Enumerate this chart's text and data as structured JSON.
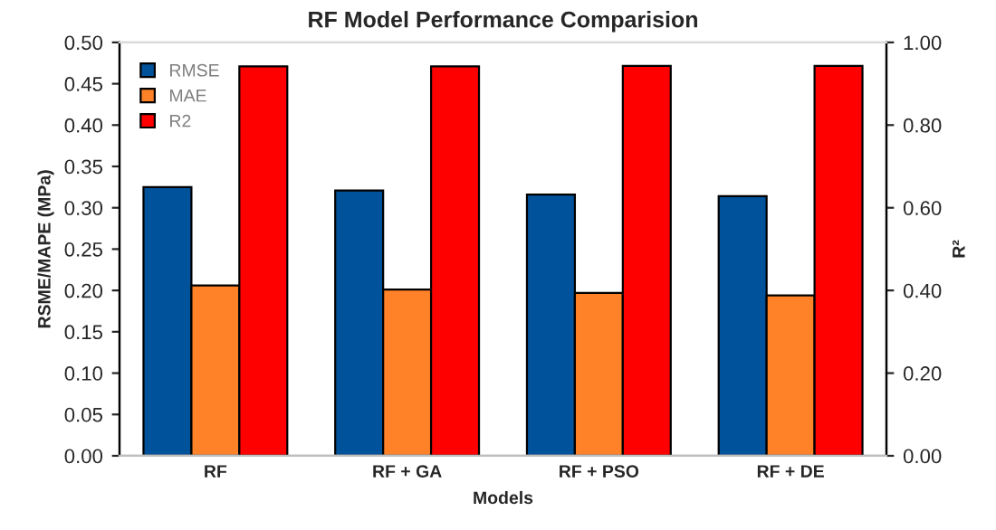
{
  "chart_data": {
    "type": "bar",
    "title": "RF Model Performance Comparision",
    "xlabel": "Models",
    "ylabel": "RSME/MAPE (MPa)",
    "y2label": "R²",
    "categories": [
      "RF",
      "RF + GA",
      "RF + PSO",
      "RF + DE"
    ],
    "series": [
      {
        "name": "RMSE",
        "color": "#00529b",
        "values": [
          0.325,
          0.321,
          0.316,
          0.314
        ]
      },
      {
        "name": "MAE",
        "color": "#ff8229",
        "values": [
          0.206,
          0.201,
          0.197,
          0.194
        ]
      },
      {
        "name": "R2",
        "color": "#ff0000",
        "values": [
          0.942,
          0.942,
          0.943,
          0.943
        ],
        "axis": "y2"
      }
    ],
    "ylim": [
      0,
      0.5
    ],
    "yticks": [
      {
        "value": 0,
        "label": "0.00"
      },
      {
        "value": 0.05,
        "label": "0.05"
      },
      {
        "value": 0.1,
        "label": "0.10"
      },
      {
        "value": 0.15,
        "label": "0.15"
      },
      {
        "value": 0.2,
        "label": "0.20"
      },
      {
        "value": 0.25,
        "label": "0.25"
      },
      {
        "value": 0.3,
        "label": "0.30"
      },
      {
        "value": 0.35,
        "label": "0.35"
      },
      {
        "value": 0.4,
        "label": "0.40"
      },
      {
        "value": 0.45,
        "label": "0.45"
      },
      {
        "value": 0.5,
        "label": "0.50"
      }
    ],
    "y2lim": [
      0,
      1
    ],
    "y2ticks": [
      {
        "value": 0,
        "label": "0.00"
      },
      {
        "value": 0.2,
        "label": "0.20"
      },
      {
        "value": 0.4,
        "label": "0.40"
      },
      {
        "value": 0.6,
        "label": "0.60"
      },
      {
        "value": 0.8,
        "label": "0.80"
      },
      {
        "value": 1,
        "label": "1.00"
      }
    ],
    "legend": "top left",
    "grid": false
  }
}
